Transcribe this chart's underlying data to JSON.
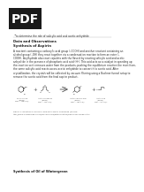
{
  "pdf_label": "PDF",
  "bullet": "to determine the role of salicylic acid and acetic anhydride",
  "section1": "Data and Observations",
  "section2": "Synthesis of Aspirin",
  "intro_lines": [
    "A reactant containing a carboxylic acid group (–COOH) and another reactant containing an",
    "alcohol group (–OH) they react together via a condensation reaction to form an ester (–",
    "COOH). Acylhydride also react capulets with the flavoid by reacting salicylic acid and acetic",
    "anhydride in the presence of phosphoric acid acid (H⁰). This acid acts as a catalyst in speeding up",
    "the reaction so it removes water from the products, pushing the equilibrium reaction the most from,",
    "the same salicylic acid reacts across acetic anhydride to convert it to acetic acid. After",
    "crystallization, the crystals will be collected by vacuum filtering using a Buchner funnel setup to",
    "remove the acetic acid from the final aspirin product."
  ],
  "mol_labels": [
    "Salicylic acid\n(C₇H₆O₃)\nMW = 138.1 g/L",
    "Acetic anhydride\n(C₄H₆O₃)\nMW = 102.1 g/L",
    "Acetyl salicylic acid\n(C₉H₈O₄)\nMW = 180.1 g/L",
    "Acetic acid\n(C₂H₄O₂)\nMW = 60.1 g/L"
  ],
  "fig_caption_line1": "Figure 1: Reaction of salicylic acid with acetic anhydride (Source:",
  "fig_caption_line2": "http://www.chemguide.co.uk/mechanisms/esterification/aspirinanhydride.html",
  "bottom_text": "Synthesis of Oil of Wintergreen",
  "page_bg": "#ffffff",
  "pdf_bg": "#1a1a1a",
  "pdf_text_color": "#ffffff",
  "text_color": "#2a2a2a",
  "heading_color": "#1a1a1a",
  "mol_color": "#333333",
  "caption_color": "#555555"
}
